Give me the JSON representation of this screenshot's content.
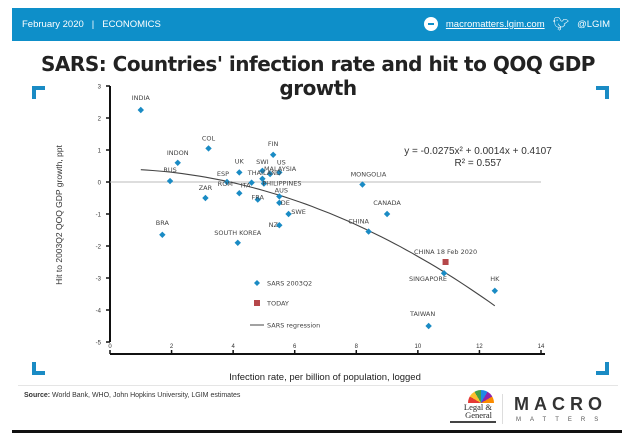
{
  "header": {
    "date": "February 2020",
    "separator": "|",
    "section": "ECONOMICS",
    "website": "macromatters.lgim.com",
    "twitter_handle": "@LGIM",
    "icons": [
      "globe-icon",
      "twitter-icon"
    ],
    "bar_color": "#0e8fc9"
  },
  "footer": {
    "source_label": "Source:",
    "source_text": " World Bank, WHO, John Hopkins University, LGIM estimates",
    "logo_lg_line1": "Legal &",
    "logo_lg_line2": "General",
    "logo_macro": "MACRO",
    "logo_matters": "MATTERS"
  },
  "chart_data": {
    "type": "scatter",
    "title": "SARS: Countries' infection rate and hit to QOQ GDP growth",
    "xlabel": "Infection rate, per billion of population, logged",
    "ylabel": "Hit to 2003Q2 QOQ GDP growth, ppt",
    "xlim": [
      0,
      14
    ],
    "ylim": [
      -5,
      3
    ],
    "xticks": [
      0,
      2,
      4,
      6,
      8,
      10,
      12,
      14
    ],
    "yticks": [
      3,
      2,
      1,
      0,
      -1,
      -2,
      -3,
      -4,
      -5
    ],
    "grid": false,
    "legend_position": "lower-left-center",
    "legend": [
      {
        "label": "SARS 2003Q2",
        "marker": "diamond",
        "color": "#1a8bc4"
      },
      {
        "label": "TODAY",
        "marker": "square",
        "color": "#b5474a"
      },
      {
        "label": "SARS regression",
        "marker": "line",
        "color": "#444444"
      }
    ],
    "annotation": {
      "equation": "y = -0.0275x² + 0.0014x + 0.4107",
      "r_squared": "R² = 0.557"
    },
    "regression": {
      "a": -0.0275,
      "b": 0.0014,
      "c": 0.4107,
      "x_range": [
        1.0,
        12.5
      ]
    },
    "series": [
      {
        "name": "SARS 2003Q2",
        "color": "#1a8bc4",
        "points": [
          {
            "label": "INDIA",
            "x": 1.0,
            "y": 2.25
          },
          {
            "label": "INDON",
            "x": 2.2,
            "y": 0.6
          },
          {
            "label": "COL",
            "x": 3.2,
            "y": 1.05
          },
          {
            "label": "RUS",
            "x": 1.95,
            "y": 0.03
          },
          {
            "label": "ESP",
            "x": 3.8,
            "y": 0.0
          },
          {
            "label": "ZAR",
            "x": 3.1,
            "y": -0.5
          },
          {
            "label": "ROM",
            "x": 4.2,
            "y": -0.35
          },
          {
            "label": "UK",
            "x": 4.2,
            "y": 0.3
          },
          {
            "label": "FIN",
            "x": 5.3,
            "y": 0.85
          },
          {
            "label": "US",
            "x": 5.5,
            "y": 0.3
          },
          {
            "label": "SWI",
            "x": 4.95,
            "y": 0.35
          },
          {
            "label": "MALAYSIA",
            "x": 5.2,
            "y": 0.25
          },
          {
            "label": "THAILAND",
            "x": 4.95,
            "y": 0.1
          },
          {
            "label": "ITA",
            "x": 4.6,
            "y": -0.02
          },
          {
            "label": "PHILIPPINES",
            "x": 5.0,
            "y": -0.05
          },
          {
            "label": "FRA",
            "x": 4.8,
            "y": -0.55
          },
          {
            "label": "AUS",
            "x": 5.5,
            "y": -0.45
          },
          {
            "label": "DE",
            "x": 5.5,
            "y": -0.65
          },
          {
            "label": "SWE",
            "x": 5.8,
            "y": -1.0
          },
          {
            "label": "NZ",
            "x": 5.5,
            "y": -1.35
          },
          {
            "label": "BRA",
            "x": 1.7,
            "y": -1.65
          },
          {
            "label": "SOUTH KOREA",
            "x": 4.15,
            "y": -1.9
          },
          {
            "label": "MONGOLIA",
            "x": 8.2,
            "y": -0.08
          },
          {
            "label": "CANADA",
            "x": 9.0,
            "y": -1.0
          },
          {
            "label": "CHINA",
            "x": 8.4,
            "y": -1.55
          },
          {
            "label": "SINGAPORE",
            "x": 10.85,
            "y": -2.85
          },
          {
            "label": "HK",
            "x": 12.5,
            "y": -3.4
          },
          {
            "label": "TAIWAN",
            "x": 10.35,
            "y": -4.5
          }
        ]
      },
      {
        "name": "TODAY",
        "color": "#b5474a",
        "points": [
          {
            "label": "CHINA 18 Feb 2020",
            "x": 10.9,
            "y": -2.5
          }
        ]
      }
    ]
  }
}
